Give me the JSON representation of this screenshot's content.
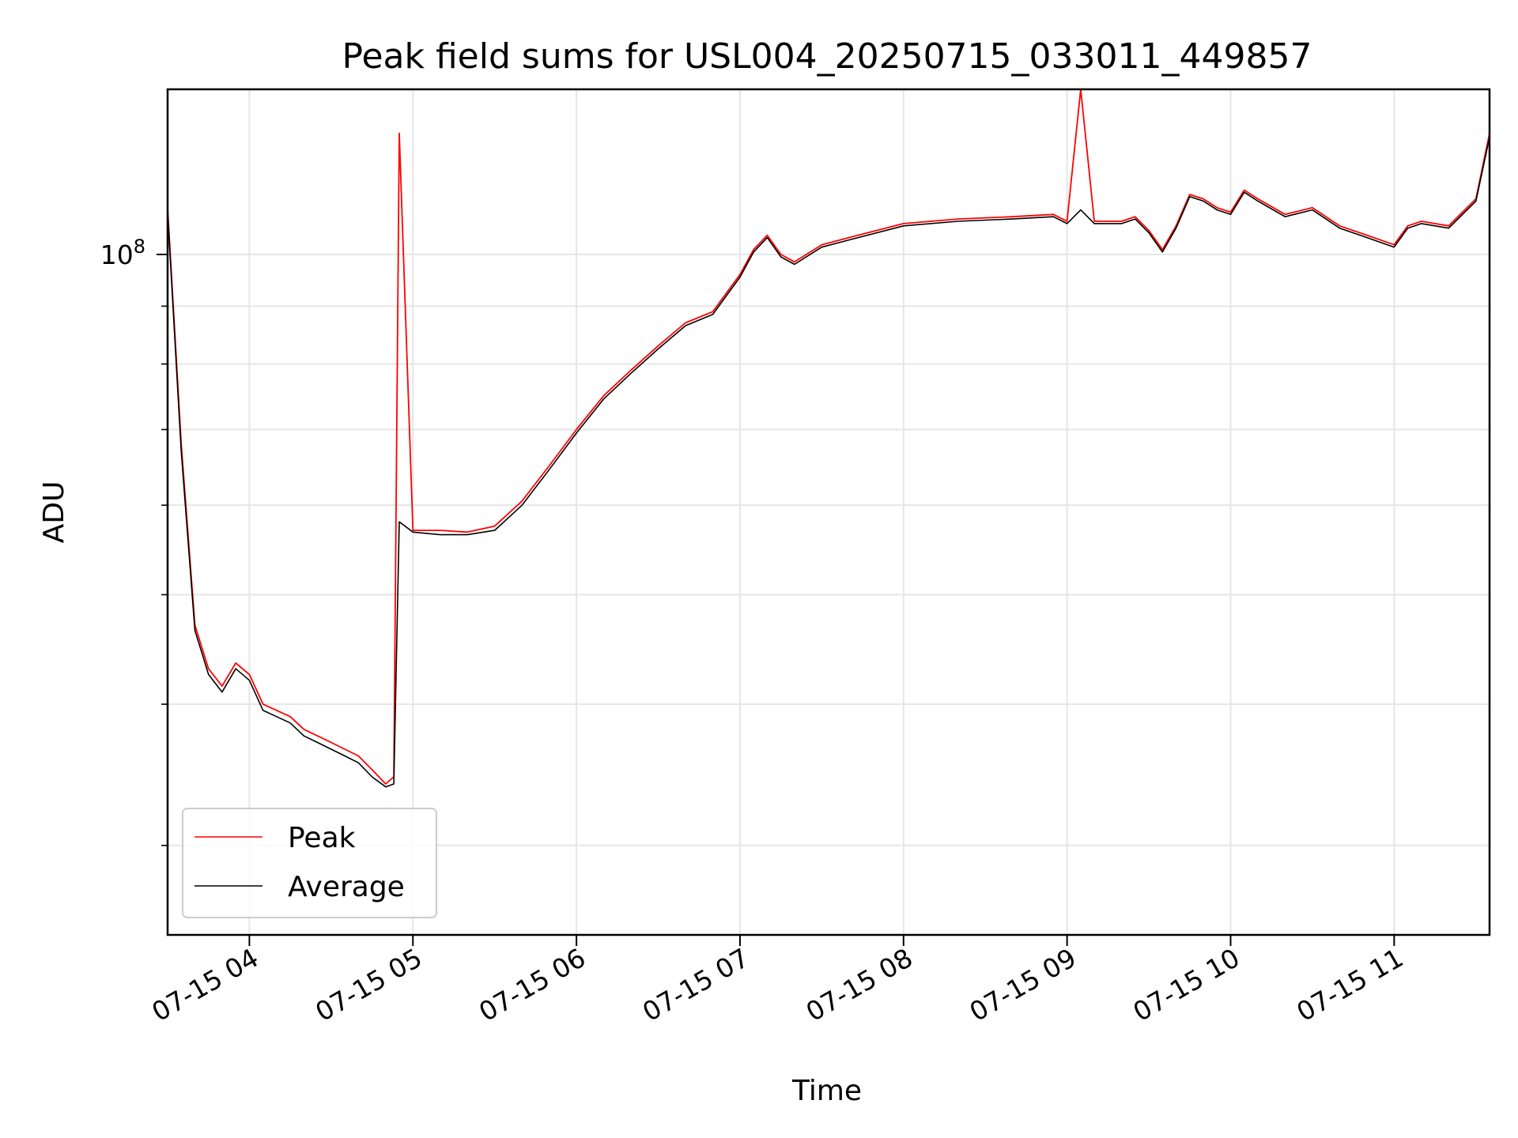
{
  "chart_data": {
    "type": "line",
    "title": "Peak field sums for USL004_20250715_033011_449857",
    "xlabel": "Time",
    "ylabel": "ADU",
    "y_scale": "log",
    "ylim": [
      25000000,
      140000000
    ],
    "xlim": [
      "2025-07-15 03:30",
      "2025-07-15 11:35"
    ],
    "x_ticks": [
      {
        "value": "2025-07-15 04:00",
        "label": "07-15 04"
      },
      {
        "value": "2025-07-15 05:00",
        "label": "07-15 05"
      },
      {
        "value": "2025-07-15 06:00",
        "label": "07-15 06"
      },
      {
        "value": "2025-07-15 07:00",
        "label": "07-15 07"
      },
      {
        "value": "2025-07-15 08:00",
        "label": "07-15 08"
      },
      {
        "value": "2025-07-15 09:00",
        "label": "07-15 09"
      },
      {
        "value": "2025-07-15 10:00",
        "label": "07-15 10"
      },
      {
        "value": "2025-07-15 11:00",
        "label": "07-15 11"
      }
    ],
    "y_major_tick": {
      "value": 100000000,
      "label_base": "10",
      "label_exp": "8"
    },
    "y_minor_ticks": [
      30000000,
      40000000,
      50000000,
      60000000,
      70000000,
      80000000,
      90000000
    ],
    "grid": true,
    "legend_position": "lower-left",
    "x": [
      "2025-07-15 03:30",
      "2025-07-15 03:35",
      "2025-07-15 03:40",
      "2025-07-15 03:45",
      "2025-07-15 03:50",
      "2025-07-15 03:55",
      "2025-07-15 04:00",
      "2025-07-15 04:05",
      "2025-07-15 04:10",
      "2025-07-15 04:15",
      "2025-07-15 04:20",
      "2025-07-15 04:25",
      "2025-07-15 04:30",
      "2025-07-15 04:35",
      "2025-07-15 04:40",
      "2025-07-15 04:45",
      "2025-07-15 04:50",
      "2025-07-15 04:53",
      "2025-07-15 04:55",
      "2025-07-15 05:00",
      "2025-07-15 05:10",
      "2025-07-15 05:20",
      "2025-07-15 05:30",
      "2025-07-15 05:40",
      "2025-07-15 05:50",
      "2025-07-15 06:00",
      "2025-07-15 06:10",
      "2025-07-15 06:20",
      "2025-07-15 06:30",
      "2025-07-15 06:40",
      "2025-07-15 06:50",
      "2025-07-15 07:00",
      "2025-07-15 07:05",
      "2025-07-15 07:10",
      "2025-07-15 07:15",
      "2025-07-15 07:20",
      "2025-07-15 07:30",
      "2025-07-15 07:40",
      "2025-07-15 08:00",
      "2025-07-15 08:20",
      "2025-07-15 08:40",
      "2025-07-15 08:55",
      "2025-07-15 09:00",
      "2025-07-15 09:05",
      "2025-07-15 09:10",
      "2025-07-15 09:20",
      "2025-07-15 09:25",
      "2025-07-15 09:30",
      "2025-07-15 09:35",
      "2025-07-15 09:40",
      "2025-07-15 09:45",
      "2025-07-15 09:50",
      "2025-07-15 09:55",
      "2025-07-15 10:00",
      "2025-07-15 10:05",
      "2025-07-15 10:10",
      "2025-07-15 10:20",
      "2025-07-15 10:30",
      "2025-07-15 10:40",
      "2025-07-15 10:50",
      "2025-07-15 11:00",
      "2025-07-15 11:05",
      "2025-07-15 11:10",
      "2025-07-15 11:20",
      "2025-07-15 11:30",
      "2025-07-15 11:35"
    ],
    "series": [
      {
        "name": "Peak",
        "color": "#ff0000",
        "values": [
          110000000,
          68000000,
          47000000,
          43000000,
          41500000,
          43500000,
          42500000,
          40000000,
          39500000,
          39000000,
          38000000,
          37500000,
          37000000,
          36500000,
          36000000,
          35000000,
          34000000,
          34500000,
          128000000,
          57000000,
          57000000,
          56800000,
          57500000,
          60500000,
          65000000,
          70000000,
          75000000,
          79000000,
          83000000,
          87000000,
          89000000,
          96000000,
          101000000,
          104000000,
          100000000,
          98500000,
          102000000,
          103500000,
          106500000,
          107500000,
          108000000,
          108500000,
          107000000,
          140000000,
          107000000,
          107000000,
          108000000,
          105000000,
          101000000,
          106000000,
          113000000,
          112000000,
          110000000,
          109000000,
          114000000,
          112000000,
          108500000,
          110000000,
          106000000,
          104000000,
          102000000,
          106000000,
          107000000,
          106000000,
          112000000,
          128000000
        ]
      },
      {
        "name": "Average",
        "color": "#000000",
        "values": [
          109000000,
          67000000,
          46500000,
          42500000,
          41000000,
          43000000,
          42000000,
          39500000,
          39000000,
          38500000,
          37500000,
          37000000,
          36500000,
          36000000,
          35500000,
          34500000,
          33800000,
          34000000,
          58000000,
          56800000,
          56500000,
          56500000,
          57000000,
          60000000,
          64500000,
          69500000,
          74500000,
          78500000,
          82500000,
          86500000,
          88500000,
          95500000,
          100500000,
          103500000,
          99500000,
          98000000,
          101500000,
          103000000,
          106000000,
          107000000,
          107500000,
          108000000,
          106500000,
          109500000,
          106500000,
          106500000,
          107500000,
          104500000,
          100500000,
          105500000,
          112500000,
          111500000,
          109500000,
          108500000,
          113500000,
          111500000,
          108000000,
          109500000,
          105500000,
          103500000,
          101500000,
          105500000,
          106500000,
          105500000,
          111500000,
          127000000
        ]
      }
    ]
  }
}
